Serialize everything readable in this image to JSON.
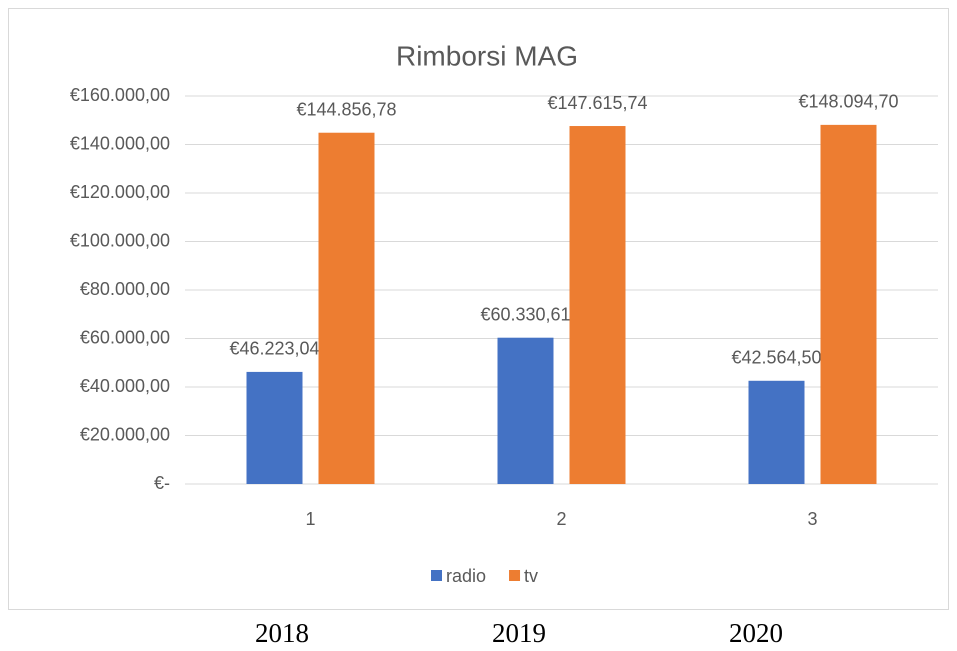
{
  "chart_data": {
    "type": "bar",
    "title": "Rimborsi MAG",
    "categories": [
      "1",
      "2",
      "3"
    ],
    "series": [
      {
        "name": "radio",
        "color": "#4472c4",
        "values": [
          46223.04,
          60330.61,
          42564.5
        ],
        "value_labels": [
          "€46.223,04",
          "€60.330,61",
          "€42.564,50"
        ]
      },
      {
        "name": "tv",
        "color": "#ed7d31",
        "values": [
          144856.78,
          147615.74,
          148094.7
        ],
        "value_labels": [
          "€144.856,78",
          "€147.615,74",
          "€148.094,70"
        ]
      }
    ],
    "ylim": [
      0,
      160000
    ],
    "yticks": [
      {
        "value": 0,
        "label": "€-"
      },
      {
        "value": 20000,
        "label": "€20.000,00"
      },
      {
        "value": 40000,
        "label": "€40.000,00"
      },
      {
        "value": 60000,
        "label": "€60.000,00"
      },
      {
        "value": 80000,
        "label": "€80.000,00"
      },
      {
        "value": 100000,
        "label": "€100.000,00"
      },
      {
        "value": 120000,
        "label": "€120.000,00"
      },
      {
        "value": 140000,
        "label": "€140.000,00"
      },
      {
        "value": 160000,
        "label": "€160.000,00"
      }
    ],
    "grid": true,
    "legend": "bottom"
  },
  "captions": [
    "2018",
    "2019",
    "2020"
  ]
}
